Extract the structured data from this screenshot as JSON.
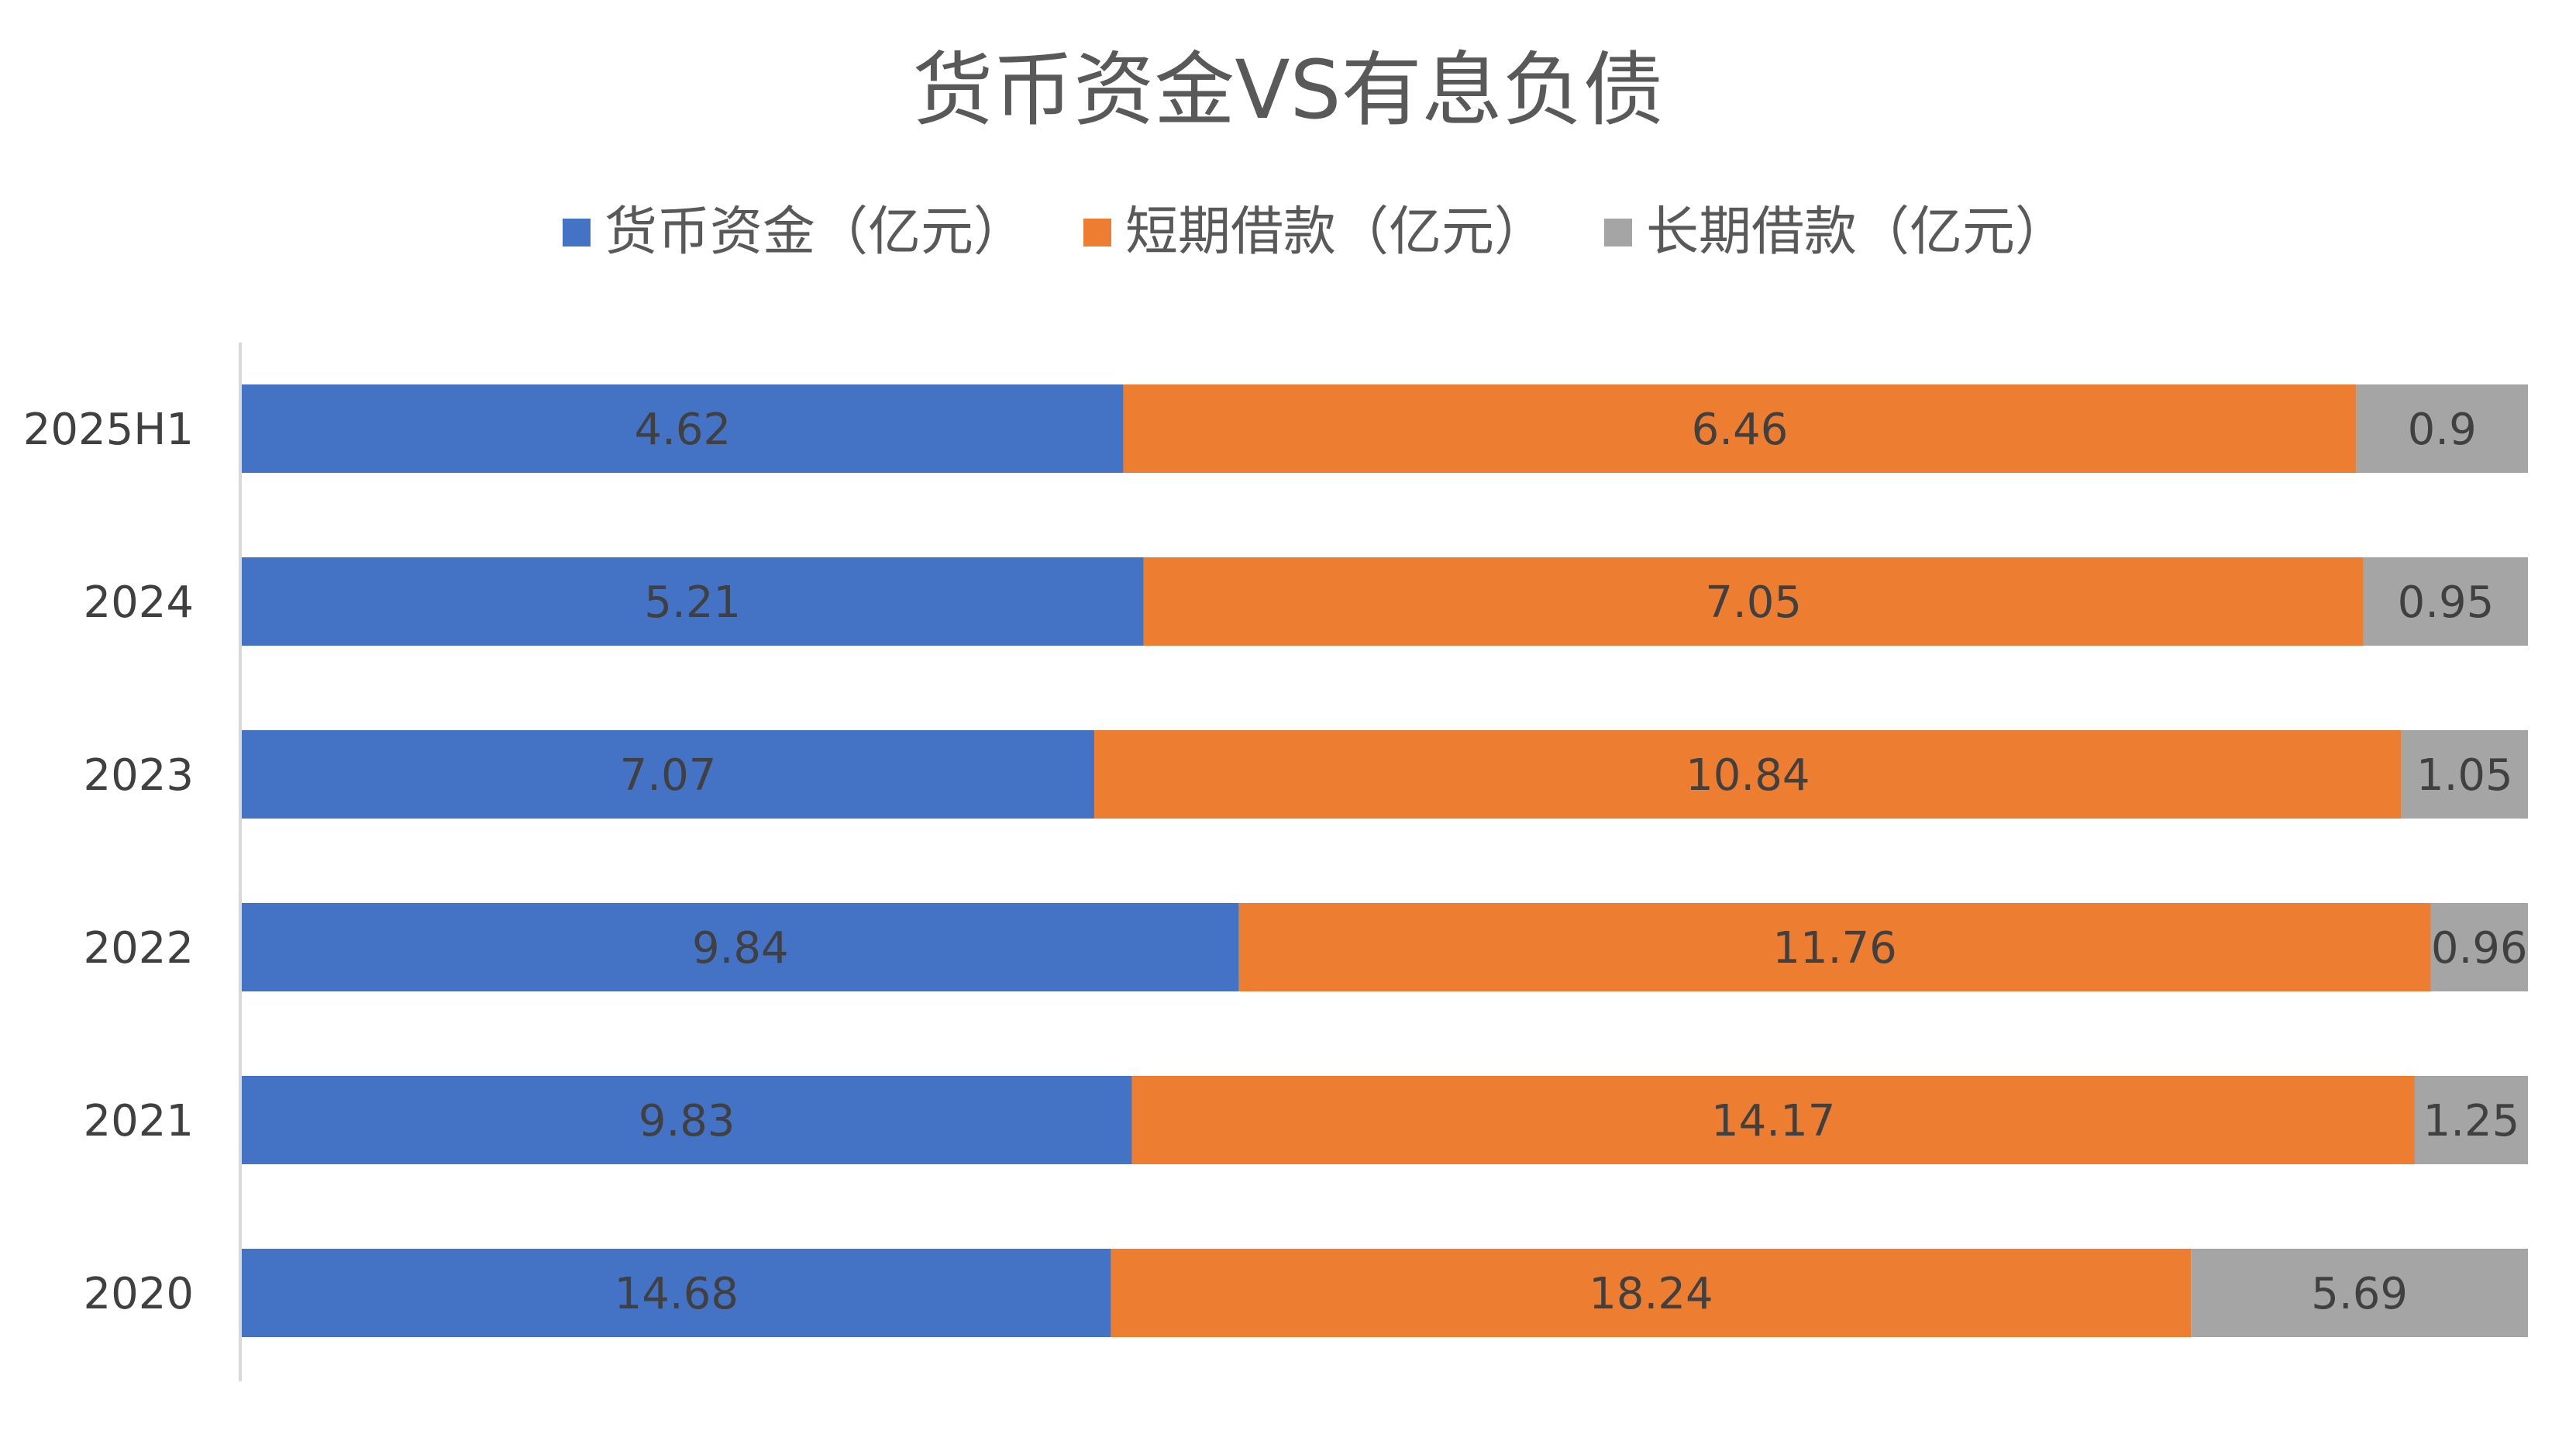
{
  "chart_data": {
    "type": "bar",
    "orientation": "horizontal",
    "stacking": "percent",
    "title": "货币资金VS有息负债",
    "categories": [
      "2025H1",
      "2024",
      "2023",
      "2022",
      "2021",
      "2020"
    ],
    "series": [
      {
        "name": "货币资金（亿元）",
        "color": "#4472C4",
        "values": [
          4.62,
          5.21,
          7.07,
          9.84,
          9.83,
          14.68
        ],
        "labels": [
          "4.62",
          "5.21",
          "7.07",
          "9.84",
          "9.83",
          "14.68"
        ]
      },
      {
        "name": "短期借款（亿元）",
        "color": "#ED7D31",
        "values": [
          6.46,
          7.05,
          10.84,
          11.76,
          14.17,
          18.24
        ],
        "labels": [
          "6.46",
          "7.05",
          "10.84",
          "11.76",
          "14.17",
          "18.24"
        ]
      },
      {
        "name": "长期借款（亿元）",
        "color": "#A5A5A5",
        "values": [
          0.9,
          0.95,
          1.05,
          0.96,
          1.25,
          5.69
        ],
        "labels": [
          "0.9",
          "0.95",
          "1.05",
          "0.96",
          "1.25",
          "5.69"
        ]
      }
    ],
    "xlabel": "",
    "ylabel": "",
    "grid": false,
    "legend_position": "top"
  }
}
